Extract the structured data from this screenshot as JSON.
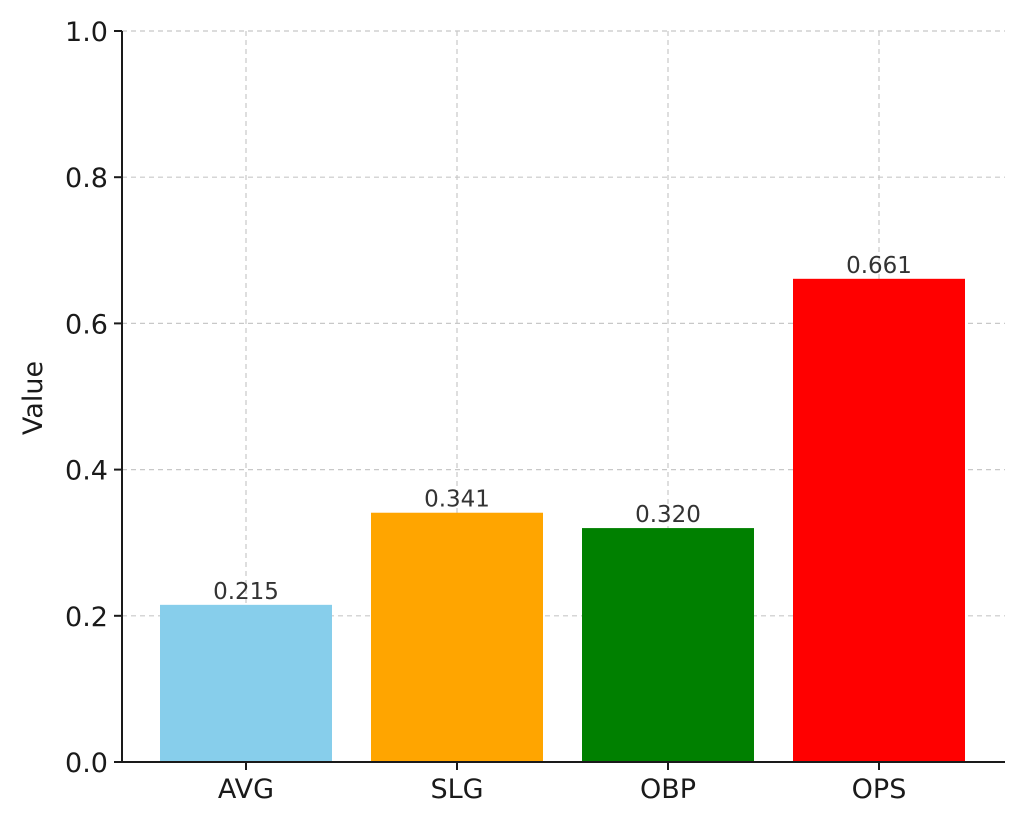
{
  "chart_data": {
    "type": "bar",
    "categories": [
      "AVG",
      "SLG",
      "OBP",
      "OPS"
    ],
    "values": [
      0.215,
      0.341,
      0.32,
      0.661
    ],
    "data_labels": [
      "0.215",
      "0.341",
      "0.320",
      "0.661"
    ],
    "colors": [
      "#87ceeb",
      "#ffa500",
      "#008000",
      "#ff0000"
    ],
    "title": "",
    "xlabel": "",
    "ylabel": "Value",
    "ylim": [
      0,
      1.0
    ],
    "yticks": [
      "0.0",
      "0.2",
      "0.4",
      "0.6",
      "0.8",
      "1.0"
    ],
    "grid": true
  }
}
